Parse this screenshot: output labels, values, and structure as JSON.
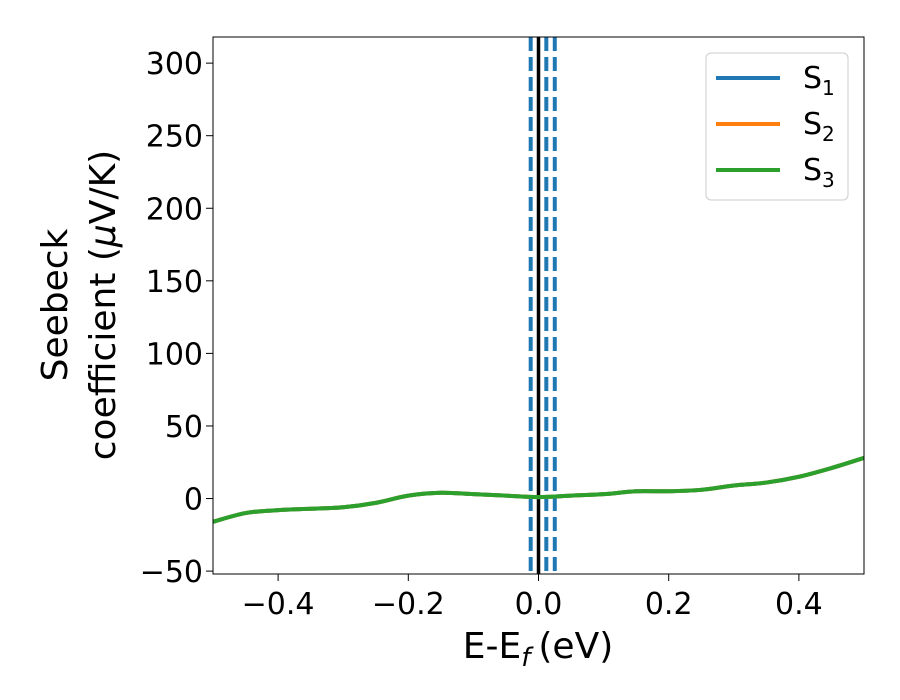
{
  "chart_data": {
    "type": "line",
    "xlabel": "E-E",
    "xlabel_sub": "f",
    "xlabel_unit": "(eV)",
    "ylabel_line1": "Seebeck",
    "ylabel_line2": "coefficient  (",
    "ylabel_mu": "μ",
    "ylabel_unit": "V/K)",
    "xlim": [
      -0.5,
      0.5
    ],
    "ylim": [
      -52,
      318
    ],
    "xticks": [
      -0.4,
      -0.2,
      0.0,
      0.2,
      0.4
    ],
    "xtick_labels": [
      "−0.4",
      "−0.2",
      "0.0",
      "0.2",
      "0.4"
    ],
    "yticks": [
      -50,
      0,
      50,
      100,
      150,
      200,
      250,
      300
    ],
    "ytick_labels": [
      "−50",
      "0",
      "50",
      "100",
      "150",
      "200",
      "250",
      "300"
    ],
    "legend_position": "top-right",
    "grid": false,
    "vlines": [
      {
        "x": 0.0,
        "color": "#000000",
        "style": "solid"
      },
      {
        "x": -0.012,
        "color": "#1f77b4",
        "style": "dashed"
      },
      {
        "x": 0.012,
        "color": "#1f77b4",
        "style": "dashed"
      },
      {
        "x": 0.025,
        "color": "#1f77b4",
        "style": "dashed"
      }
    ],
    "x": [
      -0.5,
      -0.45,
      -0.4,
      -0.35,
      -0.3,
      -0.25,
      -0.2,
      -0.15,
      -0.1,
      -0.05,
      0.0,
      0.05,
      0.1,
      0.15,
      0.2,
      0.25,
      0.3,
      0.35,
      0.4,
      0.45,
      0.5
    ],
    "series": [
      {
        "name": "S",
        "sub": "1",
        "color": "#1f77b4",
        "values": [
          -16,
          -10,
          -8,
          -7,
          -6,
          -3,
          2,
          4,
          3,
          2,
          1,
          2,
          3,
          5,
          5,
          6,
          9,
          11,
          15,
          21,
          28
        ]
      },
      {
        "name": "S",
        "sub": "2",
        "color": "#ff7f0e",
        "values": [
          -16,
          -10,
          -8,
          -7,
          -6,
          -3,
          2,
          4,
          3,
          2,
          1,
          2,
          3,
          5,
          5,
          6,
          9,
          11,
          15,
          21,
          28
        ]
      },
      {
        "name": "S",
        "sub": "3",
        "color": "#2ca02c",
        "values": [
          -16,
          -10,
          -8,
          -7,
          -6,
          -3,
          2,
          4,
          3,
          2,
          1,
          2,
          3,
          5,
          5,
          6,
          9,
          11,
          15,
          21,
          28
        ]
      }
    ]
  }
}
